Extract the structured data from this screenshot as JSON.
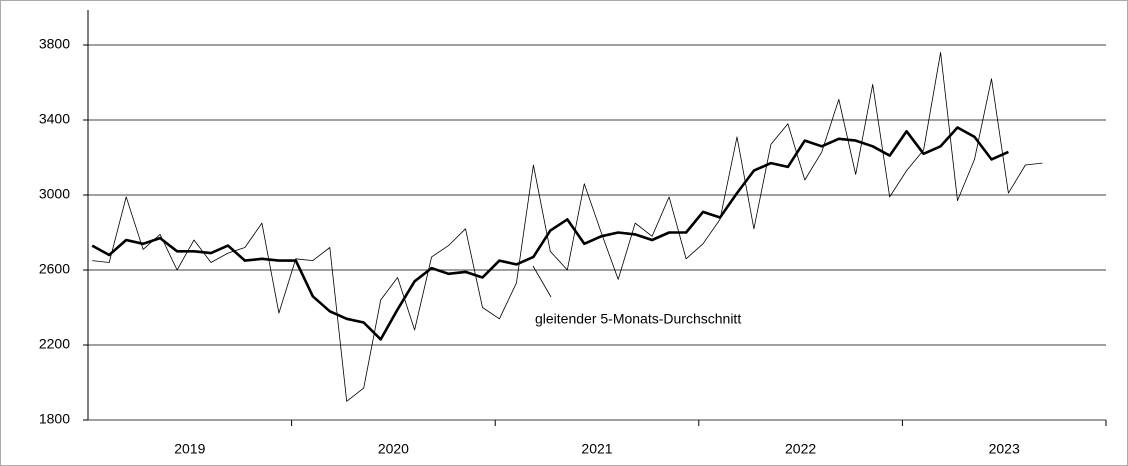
{
  "chart_data": {
    "type": "line",
    "categories": [
      null,
      null,
      null,
      null,
      null,
      null,
      null,
      null,
      null,
      null,
      null,
      null,
      null,
      null,
      null,
      null,
      null,
      null,
      null,
      null,
      null,
      null,
      null,
      null,
      null,
      null,
      null,
      null,
      null,
      null,
      null,
      null,
      null,
      null,
      null,
      null,
      null,
      null,
      null,
      null,
      null,
      null,
      null,
      null,
      null,
      null,
      null,
      null,
      null,
      null,
      null,
      null,
      null,
      null,
      null,
      null,
      null,
      null,
      null,
      null
    ],
    "year_labels": [
      "2019",
      "2020",
      "2021",
      "2022",
      "2023"
    ],
    "series": [
      {
        "color": "#000000",
        "line_width": 0.8,
        "values": [
          2650,
          2640,
          2990,
          2710,
          2790,
          2600,
          2760,
          2640,
          2690,
          2720,
          2850,
          2370,
          2660,
          2650,
          2720,
          1900,
          1970,
          2440,
          2560,
          2280,
          2670,
          2730,
          2820,
          2400,
          2340,
          2530,
          3160,
          2700,
          2600,
          3060,
          2800,
          2550,
          2850,
          2780,
          2990,
          2660,
          2740,
          2870,
          3310,
          2820,
          3270,
          3380,
          3080,
          3230,
          3510,
          3110,
          3590,
          2990,
          3130,
          3240,
          3760,
          2970,
          3190,
          3620,
          3010,
          3160,
          3170,
          null,
          null,
          null
        ]
      },
      {
        "color": "#000000",
        "line_width": 2.6,
        "values": [
          2730,
          2680,
          2760,
          2740,
          2770,
          2700,
          2700,
          2690,
          2730,
          2650,
          2660,
          2650,
          2650,
          2460,
          2380,
          2340,
          2320,
          2230,
          2390,
          2540,
          2610,
          2580,
          2590,
          2560,
          2650,
          2630,
          2670,
          2810,
          2870,
          2740,
          2780,
          2800,
          2790,
          2760,
          2800,
          2800,
          2910,
          2880,
          3010,
          3130,
          3170,
          3150,
          3290,
          3260,
          3300,
          3290,
          3260,
          3210,
          3340,
          3220,
          3260,
          3360,
          3310,
          3190,
          3230,
          null,
          null,
          null,
          null,
          null
        ]
      }
    ],
    "annotation": "gleitender 5-Monats-Durchschnitt",
    "ylim": [
      1800,
      3800
    ],
    "yticks": [
      1800,
      2200,
      2600,
      3000,
      3400,
      3800
    ],
    "grid": true
  }
}
